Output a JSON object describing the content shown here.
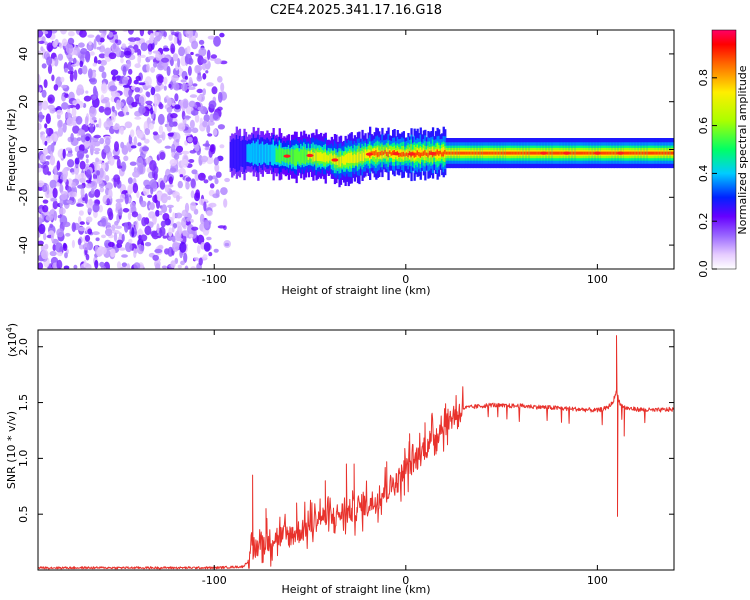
{
  "title": "C2E4.2025.341.17.16.G18",
  "chart_data": [
    {
      "type": "heatmap",
      "subtype": "spectrogram",
      "xlabel": "Height of straight line (km)",
      "ylabel": "Frequency (Hz)",
      "xlim": [
        -192,
        140
      ],
      "ylim": [
        -50,
        50
      ],
      "xticks": [
        -100,
        0,
        100
      ],
      "yticks": [
        -40,
        -20,
        0,
        20,
        40
      ],
      "noise_region_x": [
        -192,
        -92
      ],
      "signal_ridge": {
        "start_x": -92,
        "end_x": 140,
        "x": [
          -92,
          -80,
          -70,
          -60,
          -50,
          -40,
          -35,
          -30,
          -20,
          -10,
          0,
          10,
          20,
          40,
          60,
          80,
          100,
          120,
          140
        ],
        "freq": [
          -2,
          -1.5,
          -1.8,
          -3,
          -2.5,
          -3.5,
          -5,
          -4,
          -2,
          -1.5,
          -2,
          -1.8,
          -1.5,
          -1.5,
          -1.5,
          -1.5,
          -1.5,
          -1.5,
          -1.5
        ],
        "amplitude": [
          0.25,
          0.35,
          0.45,
          0.6,
          0.65,
          0.65,
          0.7,
          0.75,
          0.8,
          0.85,
          0.9,
          0.9,
          0.9,
          0.9,
          0.92,
          0.95,
          0.92,
          0.95,
          0.95
        ]
      },
      "colorbar": {
        "label": "Normalized spectral amplitude",
        "ticks": [
          0.0,
          0.2,
          0.4,
          0.6,
          0.8
        ],
        "range": [
          0,
          1
        ]
      }
    },
    {
      "type": "line",
      "xlabel": "Height of straight line (km)",
      "ylabel": "SNR (10 * v/v)",
      "y_scale_note": "(x10",
      "y_scale_exp": "4",
      "y_scale_close": ")",
      "xlim": [
        -192,
        140
      ],
      "ylim": [
        0.0,
        2.15
      ],
      "xticks": [
        -100,
        0,
        100
      ],
      "yticks": [
        0.5,
        1.0,
        1.5,
        2.0
      ],
      "ytick_labels": [
        "0.5",
        "1.0",
        "1.5",
        "2.0"
      ],
      "color": "#e8322c",
      "series": [
        {
          "name": "SNR",
          "x": [
            -192,
            -150,
            -100,
            -85,
            -80,
            -78,
            -76,
            -72,
            -68,
            -62,
            -55,
            -50,
            -45,
            -40,
            -35,
            -30,
            -25,
            -20,
            -15,
            -12,
            -8,
            -4,
            0,
            3,
            6,
            10,
            15,
            20,
            25,
            30,
            35,
            40,
            45,
            50,
            60,
            70,
            80,
            90,
            100,
            105,
            108,
            110,
            112,
            115,
            120,
            130,
            140
          ],
          "y": [
            0.02,
            0.02,
            0.02,
            0.03,
            0.12,
            0.2,
            0.25,
            0.25,
            0.3,
            0.3,
            0.35,
            0.4,
            0.48,
            0.45,
            0.5,
            0.52,
            0.55,
            0.6,
            0.62,
            0.7,
            0.75,
            0.8,
            0.92,
            0.95,
            1.0,
            1.1,
            1.2,
            1.3,
            1.38,
            1.45,
            1.46,
            1.47,
            1.48,
            1.47,
            1.47,
            1.46,
            1.45,
            1.44,
            1.43,
            1.45,
            1.5,
            1.6,
            1.48,
            1.45,
            1.44,
            1.43,
            1.44
          ]
        }
      ],
      "spikes": [
        {
          "x": -80,
          "y": 0.85
        },
        {
          "x": -73,
          "y": 0.55
        },
        {
          "x": -57,
          "y": 0.6
        },
        {
          "x": -42,
          "y": 0.8
        },
        {
          "x": -31,
          "y": 0.95
        },
        {
          "x": -27,
          "y": 0.95
        },
        {
          "x": -10,
          "y": 0.97
        },
        {
          "x": 2,
          "y": 1.22
        },
        {
          "x": 10,
          "y": 1.32
        },
        {
          "x": 14,
          "y": 1.35
        },
        {
          "x": 110,
          "y": 2.1
        },
        {
          "x": 110.5,
          "y": 0.48
        },
        {
          "x": 114,
          "y": 1.2
        }
      ]
    }
  ]
}
